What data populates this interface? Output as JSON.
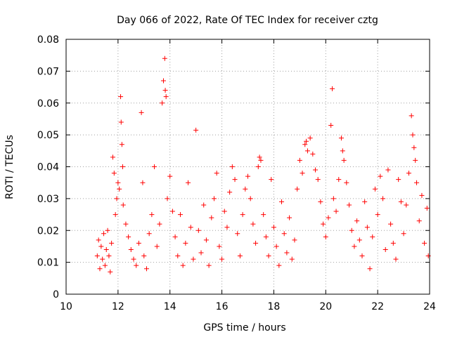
{
  "chart_data": {
    "type": "scatter",
    "title": "Day 066 of 2022, Rate Of TEC Index for receiver cztg",
    "xlabel": "GPS time / hours",
    "ylabel": "ROTI / TECUs",
    "xlim": [
      10,
      24
    ],
    "ylim": [
      0,
      0.08
    ],
    "x_ticks": [
      10,
      12,
      14,
      16,
      18,
      20,
      22,
      24
    ],
    "x_tick_labels": [
      "10",
      "12",
      "14",
      "16",
      "18",
      "20",
      "22",
      "24"
    ],
    "y_ticks": [
      0,
      0.01,
      0.02,
      0.03,
      0.04,
      0.05,
      0.06,
      0.07,
      0.08
    ],
    "y_tick_labels": [
      "0",
      "0.01",
      "0.02",
      "0.03",
      "0.04",
      "0.05",
      "0.06",
      "0.07",
      "0.08"
    ],
    "grid": true,
    "marker": "+",
    "series": [
      {
        "name": "ROTI",
        "color": "#ff0000",
        "points": [
          [
            11.2,
            0.012
          ],
          [
            11.25,
            0.017
          ],
          [
            11.3,
            0.008
          ],
          [
            11.35,
            0.015
          ],
          [
            11.4,
            0.011
          ],
          [
            11.45,
            0.019
          ],
          [
            11.5,
            0.009
          ],
          [
            11.55,
            0.014
          ],
          [
            11.6,
            0.02
          ],
          [
            11.65,
            0.012
          ],
          [
            11.7,
            0.007
          ],
          [
            11.75,
            0.016
          ],
          [
            11.8,
            0.043
          ],
          [
            11.85,
            0.038
          ],
          [
            11.9,
            0.025
          ],
          [
            11.95,
            0.03
          ],
          [
            12.0,
            0.035
          ],
          [
            12.05,
            0.033
          ],
          [
            12.1,
            0.062
          ],
          [
            12.12,
            0.054
          ],
          [
            12.15,
            0.047
          ],
          [
            12.18,
            0.04
          ],
          [
            12.2,
            0.028
          ],
          [
            12.3,
            0.022
          ],
          [
            12.4,
            0.018
          ],
          [
            12.5,
            0.014
          ],
          [
            12.6,
            0.011
          ],
          [
            12.7,
            0.009
          ],
          [
            12.8,
            0.016
          ],
          [
            12.9,
            0.057
          ],
          [
            12.95,
            0.035
          ],
          [
            13.0,
            0.012
          ],
          [
            13.1,
            0.008
          ],
          [
            13.2,
            0.019
          ],
          [
            13.3,
            0.025
          ],
          [
            13.4,
            0.04
          ],
          [
            13.5,
            0.015
          ],
          [
            13.6,
            0.022
          ],
          [
            13.7,
            0.06
          ],
          [
            13.75,
            0.067
          ],
          [
            13.8,
            0.074
          ],
          [
            13.82,
            0.064
          ],
          [
            13.85,
            0.062
          ],
          [
            13.9,
            0.03
          ],
          [
            14.0,
            0.037
          ],
          [
            14.1,
            0.026
          ],
          [
            14.2,
            0.018
          ],
          [
            14.3,
            0.012
          ],
          [
            14.4,
            0.025
          ],
          [
            14.5,
            0.009
          ],
          [
            14.6,
            0.016
          ],
          [
            14.7,
            0.035
          ],
          [
            14.8,
            0.021
          ],
          [
            14.9,
            0.011
          ],
          [
            15.0,
            0.0515
          ],
          [
            15.1,
            0.02
          ],
          [
            15.2,
            0.013
          ],
          [
            15.3,
            0.028
          ],
          [
            15.4,
            0.017
          ],
          [
            15.5,
            0.009
          ],
          [
            15.6,
            0.024
          ],
          [
            15.7,
            0.03
          ],
          [
            15.8,
            0.038
          ],
          [
            15.9,
            0.015
          ],
          [
            16.0,
            0.011
          ],
          [
            16.1,
            0.026
          ],
          [
            16.2,
            0.021
          ],
          [
            16.3,
            0.032
          ],
          [
            16.4,
            0.04
          ],
          [
            16.5,
            0.036
          ],
          [
            16.6,
            0.019
          ],
          [
            16.7,
            0.012
          ],
          [
            16.8,
            0.025
          ],
          [
            16.9,
            0.033
          ],
          [
            17.0,
            0.037
          ],
          [
            17.1,
            0.03
          ],
          [
            17.2,
            0.022
          ],
          [
            17.3,
            0.016
          ],
          [
            17.4,
            0.04
          ],
          [
            17.45,
            0.043
          ],
          [
            17.5,
            0.042
          ],
          [
            17.6,
            0.025
          ],
          [
            17.7,
            0.018
          ],
          [
            17.8,
            0.012
          ],
          [
            17.9,
            0.036
          ],
          [
            18.0,
            0.021
          ],
          [
            18.1,
            0.015
          ],
          [
            18.2,
            0.009
          ],
          [
            18.3,
            0.029
          ],
          [
            18.4,
            0.019
          ],
          [
            18.5,
            0.013
          ],
          [
            18.6,
            0.024
          ],
          [
            18.7,
            0.011
          ],
          [
            18.8,
            0.017
          ],
          [
            18.9,
            0.033
          ],
          [
            19.0,
            0.042
          ],
          [
            19.1,
            0.038
          ],
          [
            19.2,
            0.047
          ],
          [
            19.25,
            0.048
          ],
          [
            19.3,
            0.045
          ],
          [
            19.4,
            0.049
          ],
          [
            19.5,
            0.044
          ],
          [
            19.6,
            0.039
          ],
          [
            19.7,
            0.036
          ],
          [
            19.8,
            0.029
          ],
          [
            19.9,
            0.022
          ],
          [
            20.0,
            0.018
          ],
          [
            20.1,
            0.024
          ],
          [
            20.2,
            0.053
          ],
          [
            20.25,
            0.0645
          ],
          [
            20.3,
            0.03
          ],
          [
            20.4,
            0.026
          ],
          [
            20.5,
            0.036
          ],
          [
            20.6,
            0.049
          ],
          [
            20.65,
            0.045
          ],
          [
            20.7,
            0.042
          ],
          [
            20.8,
            0.035
          ],
          [
            20.9,
            0.028
          ],
          [
            21.0,
            0.02
          ],
          [
            21.1,
            0.015
          ],
          [
            21.2,
            0.023
          ],
          [
            21.3,
            0.017
          ],
          [
            21.4,
            0.012
          ],
          [
            21.5,
            0.029
          ],
          [
            21.6,
            0.021
          ],
          [
            21.7,
            0.008
          ],
          [
            21.8,
            0.018
          ],
          [
            21.9,
            0.033
          ],
          [
            22.0,
            0.025
          ],
          [
            22.1,
            0.037
          ],
          [
            22.2,
            0.03
          ],
          [
            22.3,
            0.014
          ],
          [
            22.4,
            0.039
          ],
          [
            22.5,
            0.022
          ],
          [
            22.6,
            0.016
          ],
          [
            22.7,
            0.011
          ],
          [
            22.8,
            0.036
          ],
          [
            22.9,
            0.029
          ],
          [
            23.0,
            0.019
          ],
          [
            23.1,
            0.028
          ],
          [
            23.2,
            0.038
          ],
          [
            23.3,
            0.056
          ],
          [
            23.35,
            0.05
          ],
          [
            23.4,
            0.046
          ],
          [
            23.45,
            0.042
          ],
          [
            23.5,
            0.035
          ],
          [
            23.6,
            0.023
          ],
          [
            23.7,
            0.031
          ],
          [
            23.8,
            0.016
          ],
          [
            23.9,
            0.027
          ],
          [
            23.95,
            0.012
          ]
        ]
      }
    ]
  }
}
